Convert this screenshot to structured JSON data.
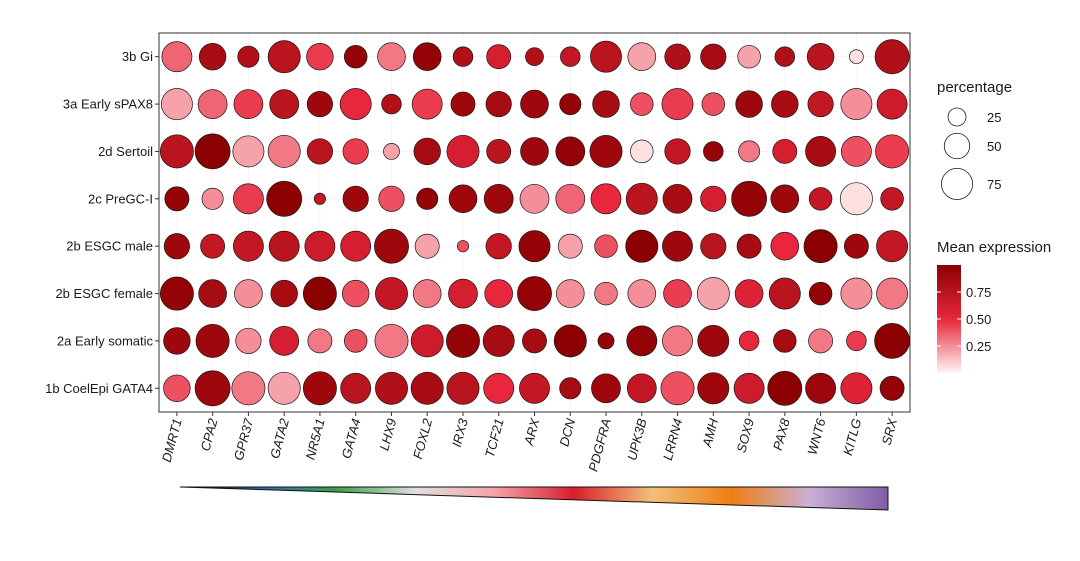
{
  "chart_data": {
    "type": "dotplot",
    "genes": [
      "DMRT1",
      "CPA2",
      "GPR37",
      "GATA2",
      "NR5A1",
      "GATA4",
      "LHX9",
      "FOXL2",
      "IRX3",
      "TCF21",
      "ARX",
      "DCN",
      "PDGFRA",
      "UPK3B",
      "LRRN4",
      "AMH",
      "SOX9",
      "PAX8",
      "WNT6",
      "KITLG",
      "SRX"
    ],
    "clusters": [
      "3b Gi",
      "3a Early sPAX8",
      "2d Sertoil",
      "2c PreGC-I",
      "2b ESGC male",
      "2b ESGC female",
      "2a Early somatic",
      "1b CoelEpi GATA4"
    ],
    "percentage": [
      [
        70,
        55,
        35,
        80,
        55,
        40,
        60,
        60,
        30,
        45,
        25,
        30,
        75,
        60,
        50,
        50,
        40,
        30,
        55,
        15,
        90
      ],
      [
        75,
        65,
        65,
        65,
        50,
        75,
        30,
        70,
        45,
        50,
        60,
        35,
        55,
        40,
        75,
        40,
        55,
        55,
        50,
        75,
        70
      ],
      [
        85,
        95,
        75,
        80,
        50,
        50,
        20,
        55,
        80,
        45,
        60,
        65,
        80,
        40,
        50,
        30,
        35,
        45,
        70,
        70,
        85
      ],
      [
        45,
        35,
        70,
        95,
        10,
        50,
        50,
        35,
        60,
        65,
        65,
        65,
        70,
        75,
        65,
        50,
        95,
        60,
        40,
        80,
        40
      ],
      [
        50,
        45,
        70,
        70,
        70,
        70,
        90,
        45,
        10,
        50,
        75,
        45,
        40,
        80,
        70,
        50,
        45,
        60,
        85,
        45,
        75
      ],
      [
        85,
        60,
        60,
        55,
        85,
        55,
        80,
        60,
        65,
        60,
        90,
        60,
        40,
        60,
        60,
        80,
        60,
        75,
        40,
        75,
        75
      ],
      [
        55,
        85,
        50,
        65,
        45,
        40,
        85,
        80,
        85,
        75,
        45,
        80,
        20,
        70,
        70,
        75,
        30,
        40,
        45,
        30,
        95
      ],
      [
        55,
        95,
        85,
        80,
        85,
        70,
        80,
        80,
        80,
        70,
        70,
        35,
        65,
        65,
        85,
        75,
        70,
        90,
        70,
        75,
        45
      ]
    ],
    "mean_expression": [
      [
        0.35,
        0.85,
        0.8,
        0.75,
        0.45,
        0.95,
        0.3,
        0.95,
        0.8,
        0.6,
        0.8,
        0.7,
        0.75,
        0.2,
        0.8,
        0.85,
        0.2,
        0.8,
        0.75,
        0.05,
        0.8
      ],
      [
        0.2,
        0.35,
        0.45,
        0.75,
        0.9,
        0.5,
        0.8,
        0.45,
        0.9,
        0.85,
        0.9,
        0.95,
        0.85,
        0.4,
        0.45,
        0.4,
        0.9,
        0.85,
        0.7,
        0.25,
        0.65
      ],
      [
        0.75,
        1.0,
        0.2,
        0.3,
        0.75,
        0.45,
        0.2,
        0.85,
        0.6,
        0.75,
        0.9,
        0.95,
        0.9,
        0.05,
        0.7,
        0.95,
        0.3,
        0.6,
        0.85,
        0.4,
        0.45
      ],
      [
        0.95,
        0.25,
        0.45,
        1.0,
        0.7,
        0.9,
        0.4,
        0.95,
        0.9,
        0.9,
        0.25,
        0.35,
        0.5,
        0.75,
        0.85,
        0.6,
        0.95,
        0.9,
        0.7,
        0.05,
        0.7
      ],
      [
        0.9,
        0.7,
        0.7,
        0.75,
        0.65,
        0.6,
        0.9,
        0.2,
        0.4,
        0.7,
        0.95,
        0.2,
        0.4,
        1.0,
        0.9,
        0.75,
        0.85,
        0.5,
        1.0,
        0.9,
        0.7
      ],
      [
        0.95,
        0.85,
        0.25,
        0.85,
        1.0,
        0.4,
        0.7,
        0.3,
        0.6,
        0.5,
        0.95,
        0.25,
        0.3,
        0.25,
        0.45,
        0.2,
        0.55,
        0.75,
        0.95,
        0.25,
        0.3
      ],
      [
        0.9,
        0.9,
        0.25,
        0.6,
        0.3,
        0.4,
        0.3,
        0.65,
        0.95,
        0.85,
        0.85,
        1.0,
        0.95,
        0.95,
        0.3,
        0.9,
        0.5,
        0.85,
        0.3,
        0.45,
        1.0
      ],
      [
        0.4,
        0.9,
        0.3,
        0.2,
        0.9,
        0.75,
        0.8,
        0.85,
        0.75,
        0.5,
        0.7,
        0.85,
        0.9,
        0.7,
        0.4,
        0.9,
        0.65,
        1.0,
        0.9,
        0.55,
        0.95
      ]
    ],
    "legend_size": {
      "title": "percentage",
      "values": [
        25,
        50,
        75
      ],
      "labels": [
        "25",
        "50",
        "75"
      ]
    },
    "legend_color": {
      "title": "Mean expression",
      "ticks": [
        0.25,
        0.5,
        0.75
      ],
      "labels": [
        "0.25",
        "0.50",
        "0.75"
      ],
      "low_color": "#fff4f4",
      "mid_color": "#e8273c",
      "high_color": "#8b0000"
    },
    "gradient_stops": [
      "#000000",
      "#2f6eb5",
      "#3aa04a",
      "#e0e0e0",
      "#f4a3a8",
      "#d81e2e",
      "#f2c078",
      "#ef7d14",
      "#c9b0d4",
      "#7f5ba6"
    ]
  }
}
